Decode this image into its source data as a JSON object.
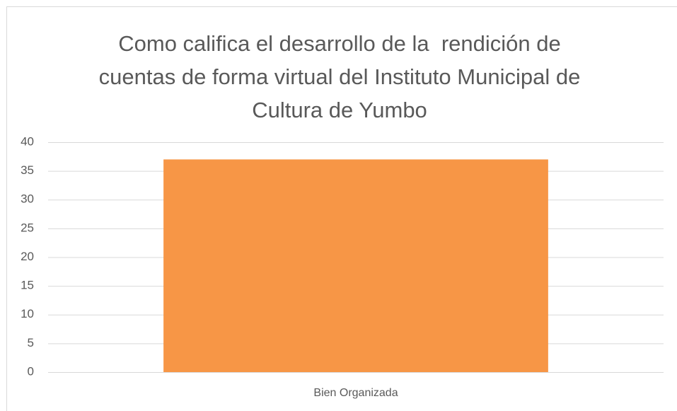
{
  "chart_data": {
    "type": "bar",
    "title": "Como califica el desarrollo de la  rendición de cuentas de forma virtual del Instituto Municipal de Cultura de Yumbo",
    "categories": [
      "Bien Organizada"
    ],
    "values": [
      37
    ],
    "color": "#f79646",
    "ylim": [
      0,
      40
    ],
    "yticks": [
      0,
      5,
      10,
      15,
      20,
      25,
      30,
      35,
      40
    ],
    "grid": true
  }
}
